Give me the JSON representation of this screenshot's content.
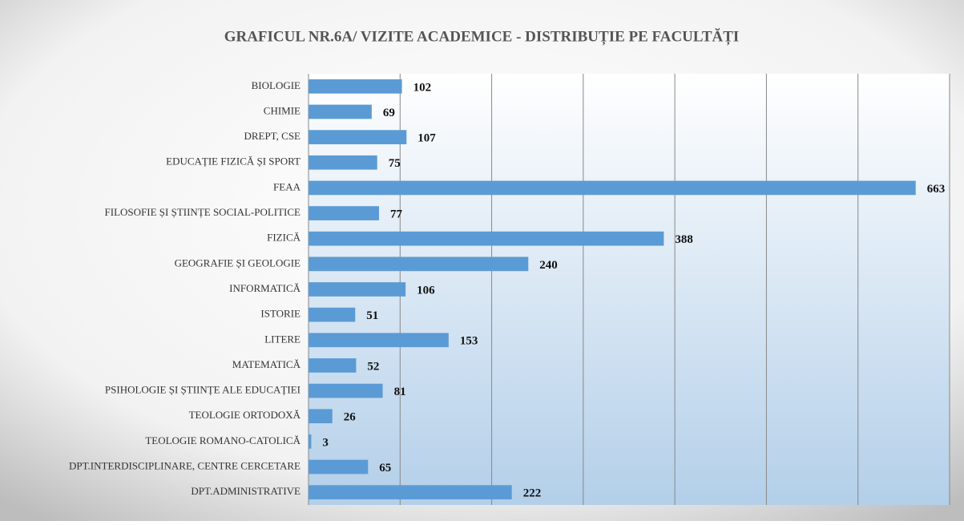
{
  "chart_data": {
    "type": "bar",
    "orientation": "horizontal",
    "title": "GRAFICUL NR.6A/ VIZITE ACADEMICE - DISTRIBUȚIE PE FACULTĂȚI",
    "categories": [
      "BIOLOGIE",
      "CHIMIE",
      "DREPT, CSE",
      "EDUCAȚIE FIZICĂ ȘI SPORT",
      "FEAA",
      "FILOSOFIE ȘI ȘTIINȚE SOCIAL-POLITICE",
      "FIZICĂ",
      "GEOGRAFIE ȘI GEOLOGIE",
      "INFORMATICĂ",
      "ISTORIE",
      "LITERE",
      "MATEMATICĂ",
      "PSIHOLOGIE ȘI ȘTIINȚE ALE EDUCAȚIEI",
      "TEOLOGIE ORTODOXĂ",
      "TEOLOGIE ROMANO-CATOLICĂ",
      "DPT.INTERDISCIPLINARE, CENTRE CERCETARE",
      "DPT.ADMINISTRATIVE"
    ],
    "values": [
      102,
      69,
      107,
      75,
      663,
      77,
      388,
      240,
      106,
      51,
      153,
      52,
      81,
      26,
      3,
      65,
      222
    ],
    "color": "#5b9bd5",
    "xlim": [
      0,
      700
    ],
    "xticks": [
      0,
      100,
      200,
      300,
      400,
      500,
      600,
      700
    ],
    "grid": true
  }
}
